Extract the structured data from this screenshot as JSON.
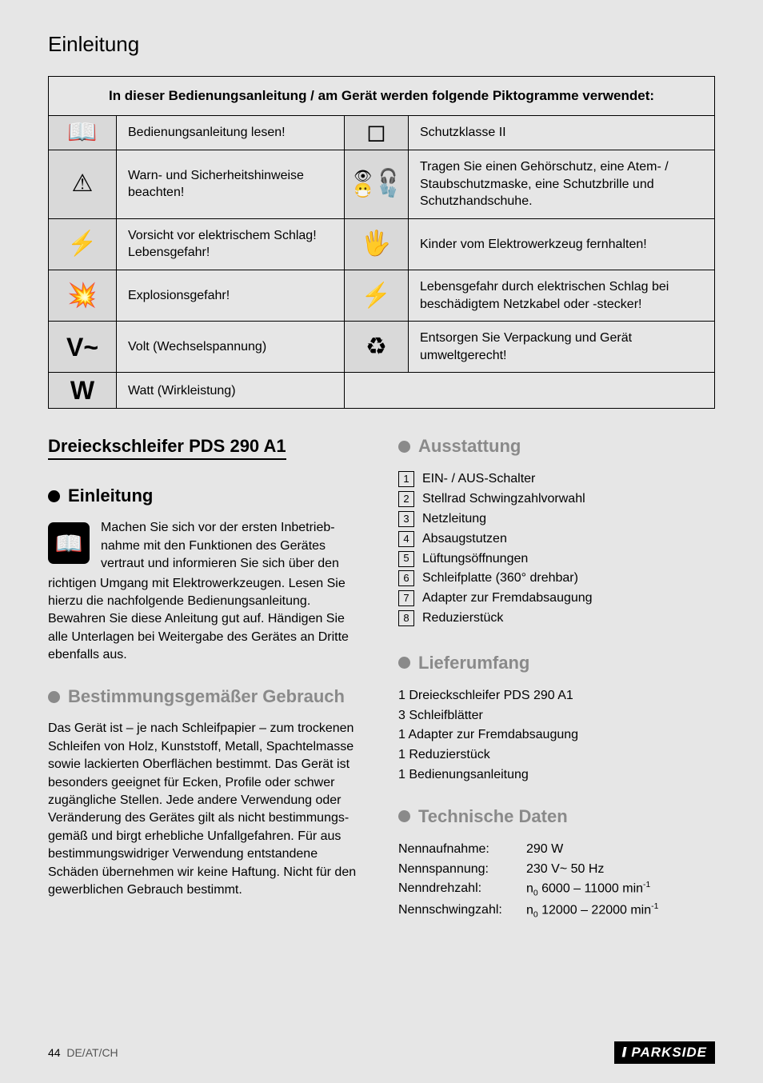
{
  "page": {
    "section_title": "Einleitung",
    "footer_page": "44",
    "footer_locale": "DE/AT/CH",
    "brand": "PARKSIDE"
  },
  "pict_table": {
    "header": "In dieser Bedienungsanleitung / am Gerät werden folgende Piktogramme verwendet:",
    "rows": [
      {
        "icon_l": "📖",
        "desc_l": "Bedienungsanleitung lesen!",
        "icon_r": "◻",
        "desc_r": "Schutzklasse II"
      },
      {
        "icon_l": "⚠",
        "desc_l": "Warn- und Sicherheitshinweise beachten!",
        "icon_r_multi": [
          "👁",
          "🎧",
          "😷",
          "🧤"
        ],
        "desc_r": "Tragen Sie einen Gehörschutz, eine Atem- / Staubschutzmaske, eine Schutzbrille und Schutzhandschuhe."
      },
      {
        "icon_l": "⚡",
        "desc_l": "Vorsicht vor elektrischem Schlag! Lebensgefahr!",
        "icon_r": "🖐",
        "desc_r": "Kinder vom Elektrowerkzeug fernhalten!"
      },
      {
        "icon_l": "💥",
        "desc_l": "Explosionsgefahr!",
        "icon_r": "⚡",
        "desc_r": "Lebensgefahr durch elektrischen Schlag bei beschädigtem Netzkabel oder -stecker!"
      },
      {
        "icon_l": "V~",
        "desc_l": "Volt (Wechselspannung)",
        "icon_r": "♻",
        "desc_r": "Entsorgen Sie Verpackung und Gerät umweltgerecht!"
      },
      {
        "icon_l": "W",
        "desc_l": "Watt (Wirkleistung)",
        "icon_r": "",
        "desc_r": ""
      }
    ]
  },
  "left_col": {
    "product_title": "Dreieckschleifer PDS 290 A1",
    "h_einleitung": "Einleitung",
    "intro_lead": "Machen Sie sich vor der ersten Inbetrieb­nahme mit den Funktionen des Gerätes vertraut und informieren Sie sich über den",
    "intro_rest": "richtigen Umgang mit Elektrowerkzeugen. Lesen Sie hierzu die nachfolgende Bedienungsanleitung. Bewahren Sie diese Anleitung gut auf. Händigen Sie alle Unterlagen bei Weitergabe des Gerätes an Dritte ebenfalls aus.",
    "h_bestimmung": "Bestimmungsgemäßer Gebrauch",
    "bestimmung_text": "Das Gerät ist – je nach Schleifpapier – zum trockenen Schleifen von Holz, Kunststoff, Metall, Spachtelmasse sowie lackierten Oberflächen bestimmt. Das Gerät ist besonders geeignet für Ecken, Profile oder schwer zugängliche Stellen. Jede andere Verwendung oder Veränderung des Gerätes gilt als nicht bestimmungs­gemäß und birgt erhebliche Unfallgefahren. Für aus bestimmungswidriger Verwendung entstandene Schäden übernehmen wir keine Haftung. Nicht für den gewerblichen Gebrauch bestimmt."
  },
  "right_col": {
    "h_ausstattung": "Ausstattung",
    "ausstattung_items": [
      "EIN- / AUS-Schalter",
      "Stellrad Schwingzahlvorwahl",
      "Netzleitung",
      "Absaugstutzen",
      "Lüftungsöffnungen",
      "Schleifplatte (360° drehbar)",
      "Adapter zur Fremdabsaugung",
      "Reduzierstück"
    ],
    "h_lieferumfang": "Lieferumfang",
    "lieferumfang_items": [
      "1 Dreieckschleifer PDS 290 A1",
      "3 Schleifblätter",
      "1 Adapter zur Fremdabsaugung",
      "1 Reduzierstück",
      "1 Bedienungsanleitung"
    ],
    "h_technische": "Technische Daten",
    "technische_rows": [
      {
        "k": "Nennaufnahme:",
        "v": "290 W"
      },
      {
        "k": "Nennspannung:",
        "v": "230 V~ 50 Hz"
      },
      {
        "k": "Nenndrehzahl:",
        "v_html": "n<sub>0</sub> 6000 – 11000 min<sup>-1</sup>"
      },
      {
        "k": "Nennschwingzahl:",
        "v_html": "n<sub>0</sub> 12000 – 22000 min<sup>-1</sup>"
      }
    ]
  }
}
